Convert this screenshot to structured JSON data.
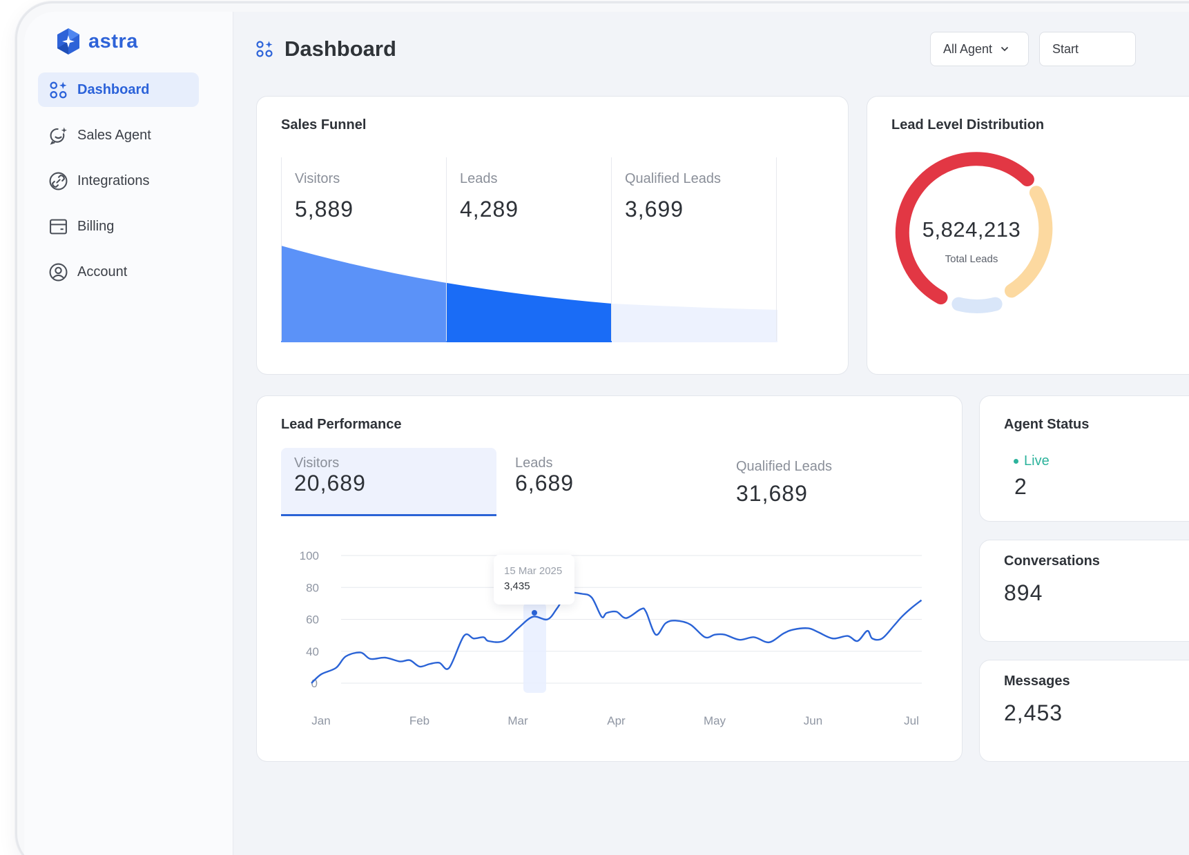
{
  "brand": {
    "name": "astra",
    "color": "#2e63d8"
  },
  "sidebar": {
    "items": [
      {
        "label": "Dashboard",
        "icon": "dashboard-grid-icon",
        "active": true
      },
      {
        "label": "Sales Agent",
        "icon": "chat-sparkle-icon",
        "active": false
      },
      {
        "label": "Integrations",
        "icon": "link-icon",
        "active": false
      },
      {
        "label": "Billing",
        "icon": "wallet-icon",
        "active": false
      },
      {
        "label": "Account",
        "icon": "user-circle-icon",
        "active": false
      }
    ]
  },
  "header": {
    "title": "Dashboard",
    "agent_filter": "All Agent",
    "start_label": "Start"
  },
  "sales_funnel": {
    "title": "Sales Funnel",
    "stages": [
      {
        "label": "Visitors",
        "value": "5,889"
      },
      {
        "label": "Leads",
        "value": "4,289"
      },
      {
        "label": "Qualified Leads",
        "value": "3,699"
      }
    ]
  },
  "lead_distribution": {
    "title": "Lead Level Distribution",
    "total": "5,824,213",
    "total_label": "Total Leads",
    "colors": [
      "#e23744",
      "#fcd9a0",
      "#d9e6f9"
    ]
  },
  "lead_performance": {
    "title": "Lead Performance",
    "tabs": [
      {
        "label": "Visitors",
        "value": "20,689",
        "active": true
      },
      {
        "label": "Leads",
        "value": "6,689",
        "active": false
      },
      {
        "label": "Qualified Leads",
        "value": "31,689",
        "active": false
      }
    ],
    "tooltip": {
      "date": "15 Mar 2025",
      "value": "3,435"
    }
  },
  "agent_status": {
    "title": "Agent Status",
    "live_label": "Live",
    "live_count": "2"
  },
  "conversations": {
    "title": "Conversations",
    "value": "894"
  },
  "messages": {
    "title": "Messages",
    "value": "2,453"
  },
  "chart_data": {
    "type": "line",
    "title": "",
    "xlabel": "",
    "ylabel": "",
    "categories": [
      "Jan",
      "Feb",
      "Mar",
      "Apr",
      "May",
      "Jun",
      "Jul"
    ],
    "y_ticks": [
      "0",
      "40",
      "60",
      "80",
      "100"
    ],
    "ylim": [
      0,
      100
    ],
    "grid": true,
    "series": [
      {
        "color": "#2a63d6",
        "x": [
          0.0,
          0.1,
          0.25,
          0.35,
          0.5,
          0.6,
          0.75,
          0.9,
          1.0,
          1.1,
          1.2,
          1.3,
          1.4,
          1.55,
          1.65,
          1.75,
          1.8,
          1.95,
          2.1,
          2.25,
          2.4,
          2.5,
          2.6,
          2.75,
          2.85,
          2.95,
          3.0,
          3.1,
          3.2,
          3.35,
          3.4,
          3.5,
          3.6,
          3.7,
          3.85,
          4.0,
          4.1,
          4.2,
          4.35,
          4.5,
          4.65,
          4.8,
          4.9,
          5.05,
          5.15,
          5.3,
          5.45,
          5.55,
          5.65,
          5.7,
          5.8,
          5.92,
          6.0,
          6.1,
          6.2
        ],
        "values": [
          0,
          7,
          12,
          21,
          24,
          19,
          20,
          17,
          18,
          13,
          15,
          16,
          12,
          37,
          35,
          36,
          33,
          33,
          43,
          52,
          50,
          59,
          70,
          70,
          67,
          52,
          55,
          56,
          51,
          58,
          56,
          38,
          47,
          49,
          46,
          36,
          38,
          38,
          34,
          36,
          32,
          39,
          42,
          43,
          40,
          35,
          37,
          33,
          41,
          35,
          35,
          45,
          52,
          59,
          65
        ]
      }
    ]
  }
}
